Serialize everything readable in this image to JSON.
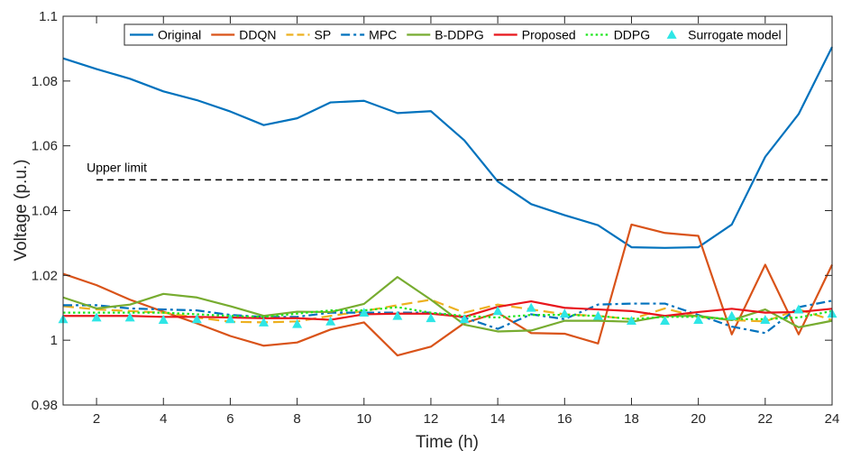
{
  "chart_data": {
    "type": "line",
    "title": "",
    "xlabel": "Time (h)",
    "ylabel": "Voltage (p.u.)",
    "xlim": [
      1,
      24
    ],
    "ylim": [
      0.98,
      1.1
    ],
    "x_ticks": [
      2,
      4,
      6,
      8,
      10,
      12,
      14,
      16,
      18,
      20,
      22,
      24
    ],
    "y_ticks": [
      0.98,
      1,
      1.02,
      1.04,
      1.06,
      1.08,
      1.1
    ],
    "y_tick_labels": [
      "0.98",
      "1",
      "1.02",
      "1.04",
      "1.06",
      "1.08",
      "1.1"
    ],
    "grid": false,
    "legend_position": "top",
    "x": [
      1,
      2,
      3,
      4,
      5,
      6,
      7,
      8,
      9,
      10,
      11,
      12,
      13,
      14,
      15,
      16,
      17,
      18,
      19,
      20,
      21,
      22,
      23,
      24
    ],
    "reference_lines": [
      {
        "label": "Upper limit",
        "y": 1.0495,
        "color": "#000000",
        "style": "dashed"
      }
    ],
    "series": [
      {
        "name": "Original",
        "color": "#0072BD",
        "style": "solid",
        "marker": "none",
        "values": [
          1.087,
          1.0837,
          1.0807,
          1.0768,
          1.0741,
          1.0706,
          1.0664,
          1.0685,
          1.0734,
          1.0739,
          1.0701,
          1.0707,
          1.0617,
          1.049,
          1.042,
          1.0386,
          1.0355,
          1.0287,
          1.0285,
          1.0287,
          1.0357,
          1.0566,
          1.0698,
          1.0905
        ]
      },
      {
        "name": "DDQN",
        "color": "#D95319",
        "style": "solid",
        "marker": "none",
        "values": [
          1.0205,
          1.017,
          1.0125,
          1.0088,
          1.0052,
          1.0013,
          0.9983,
          0.9993,
          1.0033,
          1.0055,
          0.9953,
          0.998,
          1.0053,
          1.0085,
          1.0022,
          1.002,
          0.999,
          1.0357,
          1.0331,
          1.0322,
          1.0018,
          1.0233,
          1.0018,
          1.0233
        ]
      },
      {
        "name": "SP",
        "color": "#EDB120",
        "style": "dashed",
        "marker": "none",
        "values": [
          1.0105,
          1.0095,
          1.009,
          1.0085,
          1.007,
          1.0057,
          1.0055,
          1.0058,
          1.0075,
          1.009,
          1.0108,
          1.0125,
          1.0085,
          1.011,
          1.0095,
          1.008,
          1.0075,
          1.0065,
          1.0098,
          1.0072,
          1.0062,
          1.0058,
          1.0095,
          1.0062
        ]
      },
      {
        "name": "MPC",
        "color": "#0072BD",
        "style": "dashdot",
        "marker": "none",
        "values": [
          1.0108,
          1.0108,
          1.0098,
          1.0095,
          1.0092,
          1.0078,
          1.0072,
          1.0072,
          1.0085,
          1.0085,
          1.0085,
          1.0085,
          1.007,
          1.0035,
          1.008,
          1.0065,
          1.011,
          1.0113,
          1.0113,
          1.0078,
          1.0042,
          1.0022,
          1.0102,
          1.0122
        ]
      },
      {
        "name": "B-DDPG",
        "color": "#77AC30",
        "style": "solid",
        "marker": "none",
        "values": [
          1.0132,
          1.0098,
          1.011,
          1.0143,
          1.0132,
          1.0105,
          1.0075,
          1.0088,
          1.0087,
          1.0112,
          1.0195,
          1.0125,
          1.0048,
          1.0027,
          1.003,
          1.006,
          1.006,
          1.0057,
          1.0075,
          1.0075,
          1.0062,
          1.0095,
          1.004,
          1.006
        ]
      },
      {
        "name": "Proposed",
        "color": "#E8161C",
        "style": "solid",
        "marker": "none",
        "values": [
          1.0075,
          1.0075,
          1.0075,
          1.0072,
          1.0072,
          1.007,
          1.0068,
          1.0068,
          1.0063,
          1.008,
          1.0082,
          1.0082,
          1.0072,
          1.0103,
          1.012,
          1.01,
          1.0095,
          1.009,
          1.0075,
          1.0087,
          1.0097,
          1.0085,
          1.0087,
          1.0097
        ]
      },
      {
        "name": "DDPG",
        "color": "#1EE61E",
        "style": "dotted",
        "marker": "none",
        "values": [
          1.0085,
          1.0085,
          1.0085,
          1.0085,
          1.008,
          1.0075,
          1.0072,
          1.0082,
          1.0092,
          1.0092,
          1.0102,
          1.0085,
          1.0075,
          1.007,
          1.0078,
          1.0078,
          1.0075,
          1.0065,
          1.0072,
          1.0072,
          1.0065,
          1.0065,
          1.007,
          1.009
        ]
      },
      {
        "name": "Surrogate model",
        "color": "#2EE6E6",
        "style": "none",
        "marker": "triangle",
        "values": [
          1.0065,
          1.007,
          1.007,
          1.0063,
          1.0065,
          1.0065,
          1.0055,
          1.005,
          1.0058,
          1.0085,
          1.0075,
          1.0068,
          1.0065,
          1.009,
          1.01,
          1.0082,
          1.0075,
          1.006,
          1.006,
          1.0063,
          1.0075,
          1.0063,
          1.0095,
          1.0082
        ]
      }
    ]
  }
}
